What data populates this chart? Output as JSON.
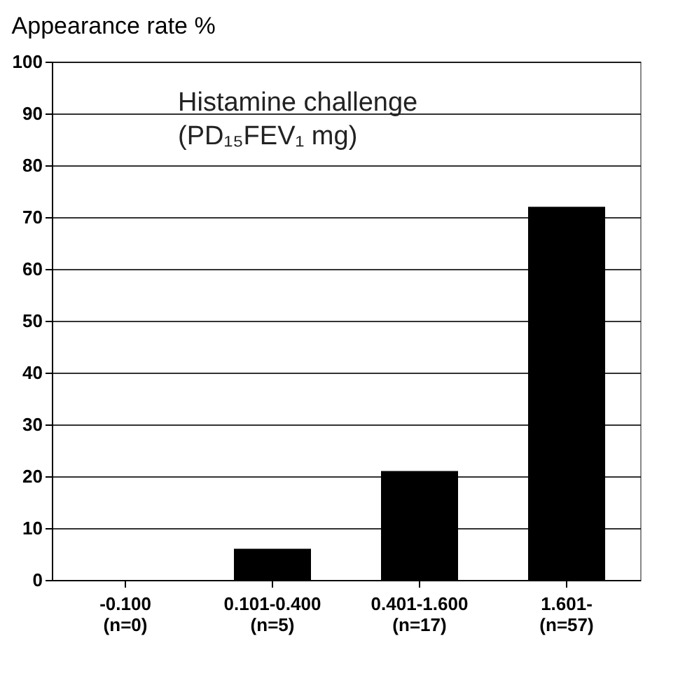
{
  "chart_data": {
    "type": "bar",
    "title": "Appearance rate %",
    "categories": [
      "-0.100\n(n=0)",
      "0.101-0.400\n(n=5)",
      "0.401-1.600\n(n=17)",
      "1.601-\n(n=57)"
    ],
    "values": [
      0,
      6,
      21,
      72
    ],
    "color": "#000000",
    "ylim": [
      0,
      100
    ],
    "yticks": [
      0,
      10,
      20,
      30,
      40,
      50,
      60,
      70,
      80,
      90,
      100
    ],
    "grid": "y",
    "annotations": [
      "Histamine challenge\n(PD₁₅FEV₁ mg)"
    ]
  }
}
